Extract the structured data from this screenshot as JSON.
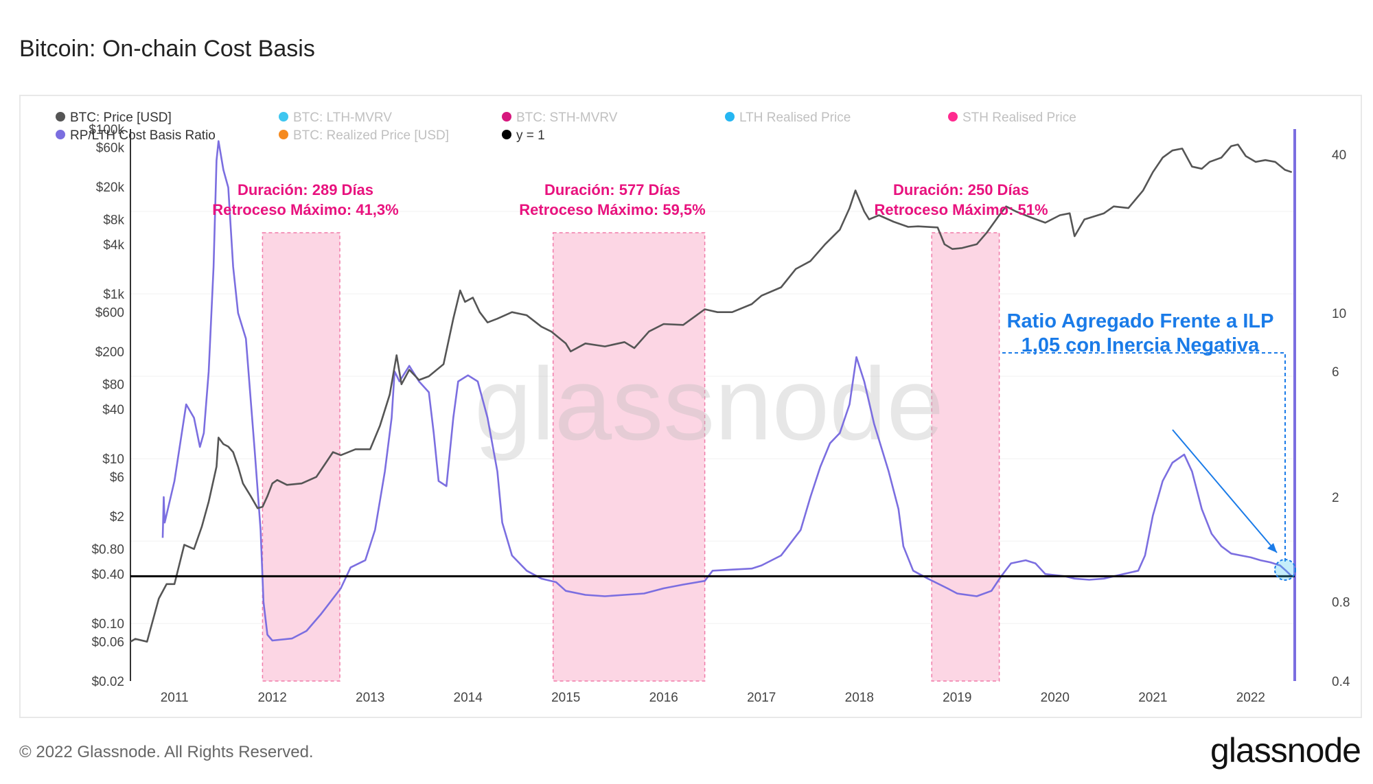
{
  "title": "Bitcoin: On-chain Cost Basis",
  "footer": {
    "copyright": "© 2022 Glassnode. All Rights Reserved.",
    "logo": "glassnode"
  },
  "watermark": "glassnode",
  "legend": [
    {
      "label": "BTC: Price [USD]",
      "color": "#555555",
      "active": true
    },
    {
      "label": "BTC: LTH-MVRV",
      "color": "#3ec6f0",
      "active": false
    },
    {
      "label": "BTC: STH-MVRV",
      "color": "#d6177d",
      "active": false
    },
    {
      "label": "LTH Realised Price",
      "color": "#25b6f2",
      "active": false
    },
    {
      "label": "STH Realised Price",
      "color": "#ff2a8f",
      "active": false
    },
    {
      "label": "RP/LTH Cost Basis Ratio",
      "color": "#7b6ee0",
      "active": true
    },
    {
      "label": "BTC: Realized Price [USD]",
      "color": "#f58a1f",
      "active": false
    },
    {
      "label": "y = 1",
      "color": "#000000",
      "active": true
    }
  ],
  "annotations": {
    "bear1": {
      "line1": "Duración: 289 Días",
      "line2": "Retroceso Máximo: 41,3%"
    },
    "bear2": {
      "line1": "Duración: 577 Días",
      "line2": "Retroceso Máximo: 59,5%"
    },
    "bear3": {
      "line1": "Duración: 250 Días",
      "line2": "Retroceso Máximo: 51%"
    },
    "callout": {
      "line1": "Ratio Agregado Frente a ILP",
      "line2": "1,05 con Inercia Negativa"
    }
  },
  "chart_data": {
    "type": "line",
    "title": "Bitcoin: On-chain Cost Basis",
    "x_ticks": [
      "2011",
      "2012",
      "2013",
      "2014",
      "2015",
      "2016",
      "2017",
      "2018",
      "2019",
      "2020",
      "2021",
      "2022"
    ],
    "y_left": {
      "label": "BTC: Price [USD]",
      "scale": "log",
      "range": [
        0.02,
        100000
      ],
      "ticks": [
        "$100k",
        "$60k",
        "$20k",
        "$8k",
        "$4k",
        "$1k",
        "$600",
        "$200",
        "$80",
        "$40",
        "$10",
        "$6",
        "$2",
        "$0.80",
        "$0.40",
        "$0.10",
        "$0.06",
        "$0.02"
      ],
      "tick_values": [
        100000,
        60000,
        20000,
        8000,
        4000,
        1000,
        600,
        200,
        80,
        40,
        10,
        6,
        2,
        0.8,
        0.4,
        0.1,
        0.06,
        0.02
      ]
    },
    "y_right": {
      "label": "RP/LTH Cost Basis Ratio",
      "scale": "log",
      "range": [
        0.4,
        50
      ],
      "ticks": [
        "40",
        "10",
        "6",
        "2",
        "0.8",
        "0.4"
      ],
      "tick_values": [
        40,
        10,
        6,
        2,
        0.8,
        0.4
      ]
    },
    "shaded_periods": [
      {
        "start": 2011.9,
        "end": 2012.69,
        "label": "Duración: 289 Días"
      },
      {
        "start": 2014.87,
        "end": 2016.42,
        "label": "Duración: 577 Días"
      },
      {
        "start": 2018.74,
        "end": 2019.43,
        "label": "Duración: 250 Días"
      }
    ],
    "reference_line": {
      "name": "y = 1",
      "value": 1
    },
    "series": [
      {
        "name": "BTC: Price [USD]",
        "axis": "left",
        "color": "#555555",
        "points": [
          [
            2010.55,
            0.06
          ],
          [
            2010.6,
            0.065
          ],
          [
            2010.72,
            0.06
          ],
          [
            2010.84,
            0.2
          ],
          [
            2010.92,
            0.3
          ],
          [
            2011.0,
            0.3
          ],
          [
            2011.1,
            0.9
          ],
          [
            2011.2,
            0.8
          ],
          [
            2011.28,
            1.5
          ],
          [
            2011.35,
            3
          ],
          [
            2011.43,
            8
          ],
          [
            2011.45,
            18
          ],
          [
            2011.5,
            15
          ],
          [
            2011.55,
            14
          ],
          [
            2011.6,
            12
          ],
          [
            2011.65,
            8
          ],
          [
            2011.7,
            5
          ],
          [
            2011.78,
            3.5
          ],
          [
            2011.85,
            2.5
          ],
          [
            2011.9,
            2.6
          ],
          [
            2011.95,
            3.5
          ],
          [
            2012.0,
            5
          ],
          [
            2012.05,
            5.5
          ],
          [
            2012.15,
            4.8
          ],
          [
            2012.3,
            5
          ],
          [
            2012.45,
            6
          ],
          [
            2012.55,
            9
          ],
          [
            2012.62,
            12
          ],
          [
            2012.7,
            11
          ],
          [
            2012.85,
            13
          ],
          [
            2013.0,
            13
          ],
          [
            2013.1,
            25
          ],
          [
            2013.2,
            60
          ],
          [
            2013.27,
            180
          ],
          [
            2013.32,
            80
          ],
          [
            2013.4,
            120
          ],
          [
            2013.5,
            90
          ],
          [
            2013.6,
            100
          ],
          [
            2013.75,
            140
          ],
          [
            2013.85,
            500
          ],
          [
            2013.92,
            1100
          ],
          [
            2013.97,
            800
          ],
          [
            2014.05,
            900
          ],
          [
            2014.12,
            600
          ],
          [
            2014.2,
            450
          ],
          [
            2014.3,
            500
          ],
          [
            2014.45,
            600
          ],
          [
            2014.6,
            550
          ],
          [
            2014.75,
            400
          ],
          [
            2014.85,
            350
          ],
          [
            2015.0,
            250
          ],
          [
            2015.05,
            200
          ],
          [
            2015.2,
            250
          ],
          [
            2015.4,
            230
          ],
          [
            2015.6,
            260
          ],
          [
            2015.7,
            220
          ],
          [
            2015.85,
            350
          ],
          [
            2016.0,
            430
          ],
          [
            2016.2,
            420
          ],
          [
            2016.42,
            650
          ],
          [
            2016.55,
            600
          ],
          [
            2016.7,
            600
          ],
          [
            2016.9,
            750
          ],
          [
            2017.0,
            950
          ],
          [
            2017.2,
            1200
          ],
          [
            2017.35,
            2000
          ],
          [
            2017.5,
            2500
          ],
          [
            2017.65,
            4000
          ],
          [
            2017.8,
            6000
          ],
          [
            2017.9,
            11000
          ],
          [
            2017.96,
            18000
          ],
          [
            2018.05,
            10000
          ],
          [
            2018.1,
            8000
          ],
          [
            2018.2,
            9000
          ],
          [
            2018.35,
            7500
          ],
          [
            2018.5,
            6500
          ],
          [
            2018.6,
            6600
          ],
          [
            2018.8,
            6400
          ],
          [
            2018.87,
            4000
          ],
          [
            2018.95,
            3500
          ],
          [
            2019.05,
            3600
          ],
          [
            2019.2,
            4000
          ],
          [
            2019.3,
            5500
          ],
          [
            2019.43,
            9000
          ],
          [
            2019.5,
            11500
          ],
          [
            2019.6,
            10000
          ],
          [
            2019.75,
            8500
          ],
          [
            2019.9,
            7300
          ],
          [
            2020.05,
            9000
          ],
          [
            2020.15,
            9500
          ],
          [
            2020.2,
            5000
          ],
          [
            2020.3,
            8000
          ],
          [
            2020.5,
            9500
          ],
          [
            2020.6,
            11500
          ],
          [
            2020.75,
            11000
          ],
          [
            2020.9,
            18000
          ],
          [
            2021.0,
            30000
          ],
          [
            2021.1,
            45000
          ],
          [
            2021.2,
            55000
          ],
          [
            2021.3,
            58000
          ],
          [
            2021.4,
            35000
          ],
          [
            2021.5,
            33000
          ],
          [
            2021.58,
            40000
          ],
          [
            2021.7,
            45000
          ],
          [
            2021.8,
            62000
          ],
          [
            2021.87,
            65000
          ],
          [
            2021.95,
            47000
          ],
          [
            2022.05,
            40000
          ],
          [
            2022.15,
            42000
          ],
          [
            2022.25,
            40000
          ],
          [
            2022.35,
            32000
          ],
          [
            2022.42,
            30000
          ]
        ]
      },
      {
        "name": "RP/LTH Cost Basis Ratio",
        "axis": "right",
        "color": "#7b6ee0",
        "points": [
          [
            2010.88,
            1.4
          ],
          [
            2010.89,
            2.0
          ],
          [
            2010.9,
            1.6
          ],
          [
            2011.0,
            2.3
          ],
          [
            2011.12,
            4.5
          ],
          [
            2011.2,
            4.0
          ],
          [
            2011.26,
            3.1
          ],
          [
            2011.3,
            3.5
          ],
          [
            2011.35,
            6
          ],
          [
            2011.4,
            15
          ],
          [
            2011.43,
            38
          ],
          [
            2011.45,
            45
          ],
          [
            2011.5,
            35
          ],
          [
            2011.55,
            30
          ],
          [
            2011.6,
            15
          ],
          [
            2011.65,
            10
          ],
          [
            2011.73,
            8
          ],
          [
            2011.82,
            3
          ],
          [
            2011.88,
            1.5
          ],
          [
            2011.91,
            0.8
          ],
          [
            2011.95,
            0.6
          ],
          [
            2012.0,
            0.57
          ],
          [
            2012.2,
            0.58
          ],
          [
            2012.35,
            0.62
          ],
          [
            2012.5,
            0.72
          ],
          [
            2012.7,
            0.9
          ],
          [
            2012.8,
            1.08
          ],
          [
            2012.95,
            1.15
          ],
          [
            2013.05,
            1.5
          ],
          [
            2013.15,
            2.5
          ],
          [
            2013.22,
            4
          ],
          [
            2013.25,
            6
          ],
          [
            2013.3,
            5.5
          ],
          [
            2013.4,
            6.3
          ],
          [
            2013.5,
            5.5
          ],
          [
            2013.6,
            5
          ],
          [
            2013.65,
            3.5
          ],
          [
            2013.7,
            2.3
          ],
          [
            2013.78,
            2.2
          ],
          [
            2013.85,
            4
          ],
          [
            2013.9,
            5.5
          ],
          [
            2014.0,
            5.8
          ],
          [
            2014.1,
            5.5
          ],
          [
            2014.2,
            4
          ],
          [
            2014.3,
            2.5
          ],
          [
            2014.35,
            1.6
          ],
          [
            2014.45,
            1.2
          ],
          [
            2014.6,
            1.05
          ],
          [
            2014.75,
            0.98
          ],
          [
            2014.9,
            0.95
          ],
          [
            2015.0,
            0.88
          ],
          [
            2015.2,
            0.85
          ],
          [
            2015.4,
            0.84
          ],
          [
            2015.6,
            0.85
          ],
          [
            2015.8,
            0.86
          ],
          [
            2016.0,
            0.9
          ],
          [
            2016.2,
            0.93
          ],
          [
            2016.42,
            0.96
          ],
          [
            2016.5,
            1.05
          ],
          [
            2016.7,
            1.06
          ],
          [
            2016.9,
            1.07
          ],
          [
            2017.0,
            1.1
          ],
          [
            2017.2,
            1.2
          ],
          [
            2017.4,
            1.5
          ],
          [
            2017.5,
            2
          ],
          [
            2017.6,
            2.6
          ],
          [
            2017.7,
            3.2
          ],
          [
            2017.8,
            3.5
          ],
          [
            2017.9,
            4.5
          ],
          [
            2017.97,
            6.8
          ],
          [
            2018.05,
            5.5
          ],
          [
            2018.15,
            3.8
          ],
          [
            2018.3,
            2.5
          ],
          [
            2018.4,
            1.8
          ],
          [
            2018.45,
            1.3
          ],
          [
            2018.55,
            1.05
          ],
          [
            2018.7,
            0.98
          ],
          [
            2018.9,
            0.9
          ],
          [
            2019.0,
            0.86
          ],
          [
            2019.2,
            0.84
          ],
          [
            2019.35,
            0.88
          ],
          [
            2019.45,
            1.0
          ],
          [
            2019.55,
            1.12
          ],
          [
            2019.7,
            1.15
          ],
          [
            2019.8,
            1.12
          ],
          [
            2019.9,
            1.02
          ],
          [
            2020.1,
            1.0
          ],
          [
            2020.2,
            0.98
          ],
          [
            2020.35,
            0.97
          ],
          [
            2020.5,
            0.98
          ],
          [
            2020.7,
            1.02
          ],
          [
            2020.85,
            1.05
          ],
          [
            2020.92,
            1.2
          ],
          [
            2021.0,
            1.7
          ],
          [
            2021.1,
            2.3
          ],
          [
            2021.2,
            2.7
          ],
          [
            2021.32,
            2.9
          ],
          [
            2021.4,
            2.5
          ],
          [
            2021.5,
            1.8
          ],
          [
            2021.6,
            1.45
          ],
          [
            2021.7,
            1.3
          ],
          [
            2021.8,
            1.22
          ],
          [
            2021.9,
            1.2
          ],
          [
            2022.0,
            1.18
          ],
          [
            2022.1,
            1.15
          ],
          [
            2022.2,
            1.13
          ],
          [
            2022.3,
            1.1
          ],
          [
            2022.36,
            1.05
          ],
          [
            2022.42,
            1.0
          ]
        ]
      },
      {
        "name": "y = 1",
        "axis": "right",
        "color": "#000000",
        "points": [
          [
            2010.55,
            1
          ],
          [
            2022.45,
            1
          ]
        ]
      }
    ]
  }
}
